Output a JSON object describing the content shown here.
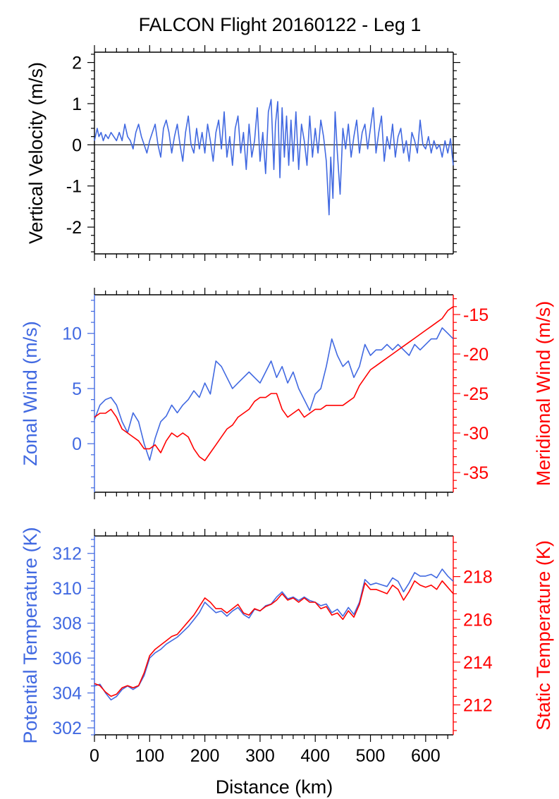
{
  "title": "FALCON Flight 20160122 - Leg 1",
  "colors": {
    "blue": "#4169e1",
    "red": "#ff0000",
    "axis": "#000000"
  },
  "x_axis": {
    "label": "Distance (km)",
    "range": [
      0,
      650
    ],
    "ticks": [
      0,
      100,
      200,
      300,
      400,
      500,
      600
    ]
  },
  "chart_data": [
    {
      "type": "line",
      "panel": "top",
      "ylabel": "Vertical Velocity (m/s)",
      "ylim": [
        -2.65,
        2.25
      ],
      "yticks": [
        2,
        1,
        0,
        -1,
        -2
      ],
      "zero_line": true,
      "series": [
        {
          "color": "#4169e1",
          "x": [
            0,
            5,
            8,
            12,
            16,
            20,
            25,
            30,
            35,
            40,
            45,
            50,
            55,
            60,
            65,
            70,
            75,
            80,
            85,
            90,
            95,
            100,
            105,
            110,
            115,
            120,
            125,
            130,
            135,
            140,
            145,
            150,
            155,
            160,
            165,
            170,
            175,
            180,
            185,
            190,
            195,
            200,
            205,
            210,
            215,
            220,
            225,
            230,
            235,
            240,
            245,
            250,
            255,
            260,
            265,
            270,
            275,
            280,
            285,
            290,
            295,
            300,
            305,
            310,
            315,
            320,
            325,
            328,
            332,
            336,
            340,
            344,
            348,
            352,
            356,
            360,
            365,
            370,
            375,
            380,
            385,
            390,
            395,
            400,
            405,
            410,
            415,
            420,
            425,
            428,
            432,
            436,
            440,
            445,
            450,
            455,
            460,
            465,
            470,
            475,
            480,
            485,
            490,
            495,
            500,
            505,
            510,
            515,
            520,
            525,
            530,
            535,
            540,
            545,
            550,
            555,
            560,
            565,
            570,
            575,
            580,
            585,
            590,
            595,
            600,
            605,
            610,
            615,
            620,
            625,
            630,
            635,
            640,
            645,
            650
          ],
          "y": [
            0.1,
            0.4,
            0.2,
            0.3,
            0.1,
            0.25,
            0.15,
            0.3,
            0.2,
            0.1,
            0.3,
            0.1,
            0.5,
            0.2,
            0.1,
            -0.1,
            0.3,
            0.5,
            0.2,
            0.0,
            -0.2,
            0.1,
            0.3,
            0.5,
            0.0,
            -0.3,
            0.4,
            0.6,
            0.3,
            -0.2,
            0.2,
            0.5,
            0.0,
            -0.4,
            0.3,
            0.7,
            0.0,
            -0.2,
            0.4,
            -0.1,
            0.3,
            -0.2,
            0.5,
            0.1,
            -0.4,
            0.3,
            0.6,
            -0.1,
            0.8,
            -0.3,
            0.2,
            -0.5,
            0.4,
            0.7,
            -0.2,
            0.3,
            -0.6,
            0.5,
            -0.3,
            0.1,
            0.9,
            -0.4,
            0.3,
            -0.7,
            0.8,
            1.1,
            -0.6,
            0.5,
            1.05,
            -0.8,
            0.9,
            -0.3,
            0.7,
            -0.5,
            0.6,
            -0.4,
            0.8,
            -0.6,
            0.5,
            0.1,
            -0.5,
            0.7,
            -0.3,
            0.4,
            -0.2,
            0.6,
            0.2,
            -0.4,
            -1.7,
            -0.3,
            -1.3,
            0.8,
            -0.2,
            -1.2,
            0.4,
            -0.1,
            0.5,
            -0.3,
            0.2,
            0.6,
            -0.2,
            0.3,
            0.5,
            -0.1,
            0.4,
            0.9,
            -0.2,
            0.3,
            0.7,
            -0.4,
            0.2,
            -0.1,
            0.5,
            -0.3,
            0.2,
            0.4,
            -0.2,
            0.1,
            -0.4,
            0.3,
            0.1,
            -0.2,
            0.6,
            0.0,
            -0.1,
            0.2,
            -0.2,
            0.1,
            -0.1,
            0.0,
            -0.3,
            0.1,
            -0.2,
            0.15,
            -0.5
          ]
        }
      ]
    },
    {
      "type": "line",
      "panel": "middle",
      "ylabel": "Zonal Wind (m/s)",
      "ylim": [
        -4.4,
        13.5
      ],
      "yticks": [
        10,
        5,
        0
      ],
      "ylabel_right": "Meridional Wind (m/s)",
      "ylim_right": [
        -37.5,
        -12.5
      ],
      "yticks_right": [
        -15,
        -20,
        -25,
        -30,
        -35
      ],
      "series": [
        {
          "name": "Zonal Wind",
          "axis": "left",
          "color": "#4169e1",
          "x": [
            0,
            10,
            20,
            30,
            40,
            50,
            60,
            70,
            80,
            90,
            100,
            110,
            120,
            130,
            140,
            150,
            160,
            170,
            180,
            190,
            200,
            210,
            220,
            230,
            240,
            250,
            260,
            270,
            280,
            290,
            300,
            310,
            320,
            330,
            340,
            350,
            360,
            370,
            380,
            390,
            400,
            410,
            420,
            430,
            440,
            450,
            460,
            470,
            480,
            490,
            500,
            510,
            520,
            530,
            540,
            550,
            560,
            570,
            580,
            590,
            600,
            610,
            620,
            630,
            640,
            650
          ],
          "y": [
            2.2,
            3.5,
            4.0,
            4.2,
            3.5,
            2.0,
            1.0,
            2.8,
            2.0,
            0.0,
            -1.5,
            0.5,
            2.0,
            2.5,
            3.5,
            2.8,
            3.5,
            4.0,
            4.8,
            4.2,
            5.5,
            4.5,
            7.5,
            7.0,
            6.0,
            5.0,
            5.5,
            6.0,
            6.5,
            6.0,
            5.5,
            6.5,
            7.5,
            6.0,
            7.0,
            5.5,
            6.5,
            5.0,
            4.0,
            3.0,
            4.5,
            5.0,
            7.0,
            9.5,
            8.0,
            7.0,
            7.5,
            6.0,
            7.0,
            9.0,
            8.0,
            8.5,
            8.5,
            9.0,
            8.5,
            9.0,
            8.5,
            8.0,
            9.0,
            8.5,
            9.0,
            9.5,
            9.5,
            10.5,
            10.0,
            9.5
          ]
        },
        {
          "name": "Meridional Wind",
          "axis": "right",
          "color": "#ff0000",
          "x": [
            0,
            10,
            20,
            30,
            40,
            50,
            60,
            70,
            80,
            90,
            100,
            110,
            120,
            130,
            140,
            150,
            160,
            170,
            180,
            190,
            200,
            210,
            220,
            230,
            240,
            250,
            260,
            270,
            280,
            290,
            300,
            310,
            320,
            330,
            340,
            350,
            360,
            370,
            380,
            390,
            400,
            410,
            420,
            430,
            440,
            450,
            460,
            470,
            480,
            490,
            500,
            510,
            520,
            530,
            540,
            550,
            560,
            570,
            580,
            590,
            600,
            610,
            620,
            630,
            640,
            650
          ],
          "y": [
            -28.0,
            -27.5,
            -27.5,
            -27.0,
            -28.0,
            -29.5,
            -30.0,
            -30.5,
            -31.0,
            -32.0,
            -32.0,
            -31.5,
            -32.5,
            -31.0,
            -30.0,
            -30.5,
            -30.0,
            -30.5,
            -32.0,
            -33.0,
            -33.5,
            -32.5,
            -31.5,
            -30.5,
            -29.5,
            -29.0,
            -28.0,
            -27.5,
            -27.0,
            -26.0,
            -25.5,
            -25.5,
            -25.0,
            -25.0,
            -27.0,
            -28.0,
            -27.5,
            -27.0,
            -28.0,
            -27.5,
            -27.0,
            -27.0,
            -26.5,
            -26.5,
            -26.5,
            -26.5,
            -26.0,
            -25.5,
            -24.0,
            -23.0,
            -22.0,
            -21.5,
            -21.0,
            -20.5,
            -20.0,
            -19.5,
            -19.0,
            -18.5,
            -18.0,
            -17.5,
            -17.0,
            -16.5,
            -16.0,
            -15.5,
            -14.5,
            -14.0
          ]
        }
      ]
    },
    {
      "type": "line",
      "panel": "bottom",
      "ylabel": "Potential Temperature (K)",
      "ylim": [
        301.6,
        313.0
      ],
      "yticks": [
        312,
        310,
        308,
        306,
        304,
        302
      ],
      "ylabel_right": "Static Temperature (K)",
      "ylim_right": [
        210.6,
        219.9
      ],
      "yticks_right": [
        218,
        216,
        214,
        212
      ],
      "series": [
        {
          "name": "Potential Temperature",
          "axis": "left",
          "color": "#4169e1",
          "x": [
            0,
            10,
            20,
            30,
            40,
            50,
            60,
            70,
            80,
            90,
            100,
            110,
            120,
            130,
            140,
            150,
            160,
            170,
            180,
            190,
            200,
            210,
            220,
            230,
            240,
            250,
            260,
            270,
            280,
            290,
            300,
            310,
            320,
            330,
            340,
            350,
            360,
            370,
            380,
            390,
            400,
            410,
            420,
            430,
            440,
            450,
            460,
            470,
            480,
            490,
            500,
            510,
            520,
            530,
            540,
            550,
            560,
            570,
            580,
            590,
            600,
            610,
            620,
            630,
            640,
            650
          ],
          "y": [
            304.4,
            304.5,
            304.0,
            303.6,
            303.8,
            304.2,
            304.4,
            304.2,
            304.4,
            305.0,
            306.0,
            306.3,
            306.5,
            306.8,
            307.0,
            307.2,
            307.5,
            307.8,
            308.2,
            308.6,
            309.2,
            308.9,
            308.6,
            308.7,
            308.4,
            308.7,
            308.9,
            308.5,
            308.3,
            308.8,
            308.7,
            309.0,
            309.1,
            309.5,
            309.8,
            309.4,
            309.5,
            309.3,
            309.5,
            309.3,
            309.2,
            309.0,
            309.1,
            308.6,
            308.8,
            308.4,
            308.9,
            308.5,
            309.2,
            310.5,
            310.2,
            310.3,
            310.2,
            310.1,
            310.6,
            310.4,
            309.8,
            310.3,
            310.9,
            310.7,
            310.7,
            310.8,
            310.6,
            311.1,
            310.7,
            310.4
          ]
        },
        {
          "name": "Static Temperature",
          "axis": "right",
          "color": "#ff0000",
          "x": [
            0,
            10,
            20,
            30,
            40,
            50,
            60,
            70,
            80,
            90,
            100,
            110,
            120,
            130,
            140,
            150,
            160,
            170,
            180,
            190,
            200,
            210,
            220,
            230,
            240,
            250,
            260,
            270,
            280,
            290,
            300,
            310,
            320,
            330,
            340,
            350,
            360,
            370,
            380,
            390,
            400,
            410,
            420,
            430,
            440,
            450,
            460,
            470,
            480,
            490,
            500,
            510,
            520,
            530,
            540,
            550,
            560,
            570,
            580,
            590,
            600,
            610,
            620,
            630,
            640,
            650
          ],
          "y": [
            213.0,
            212.9,
            212.6,
            212.4,
            212.5,
            212.8,
            212.9,
            212.8,
            212.9,
            213.5,
            214.3,
            214.6,
            214.8,
            215.0,
            215.2,
            215.3,
            215.6,
            215.9,
            216.2,
            216.6,
            217.0,
            216.8,
            216.5,
            216.5,
            216.3,
            216.5,
            216.7,
            216.3,
            216.2,
            216.5,
            216.4,
            216.6,
            216.7,
            216.9,
            217.2,
            216.9,
            217.0,
            216.8,
            217.0,
            216.8,
            216.8,
            216.5,
            216.6,
            216.2,
            216.3,
            216.0,
            216.4,
            216.1,
            216.7,
            217.7,
            217.4,
            217.4,
            217.3,
            217.2,
            217.6,
            217.4,
            216.9,
            217.3,
            217.8,
            217.6,
            217.5,
            217.6,
            217.4,
            217.8,
            217.5,
            217.2
          ]
        }
      ]
    }
  ]
}
